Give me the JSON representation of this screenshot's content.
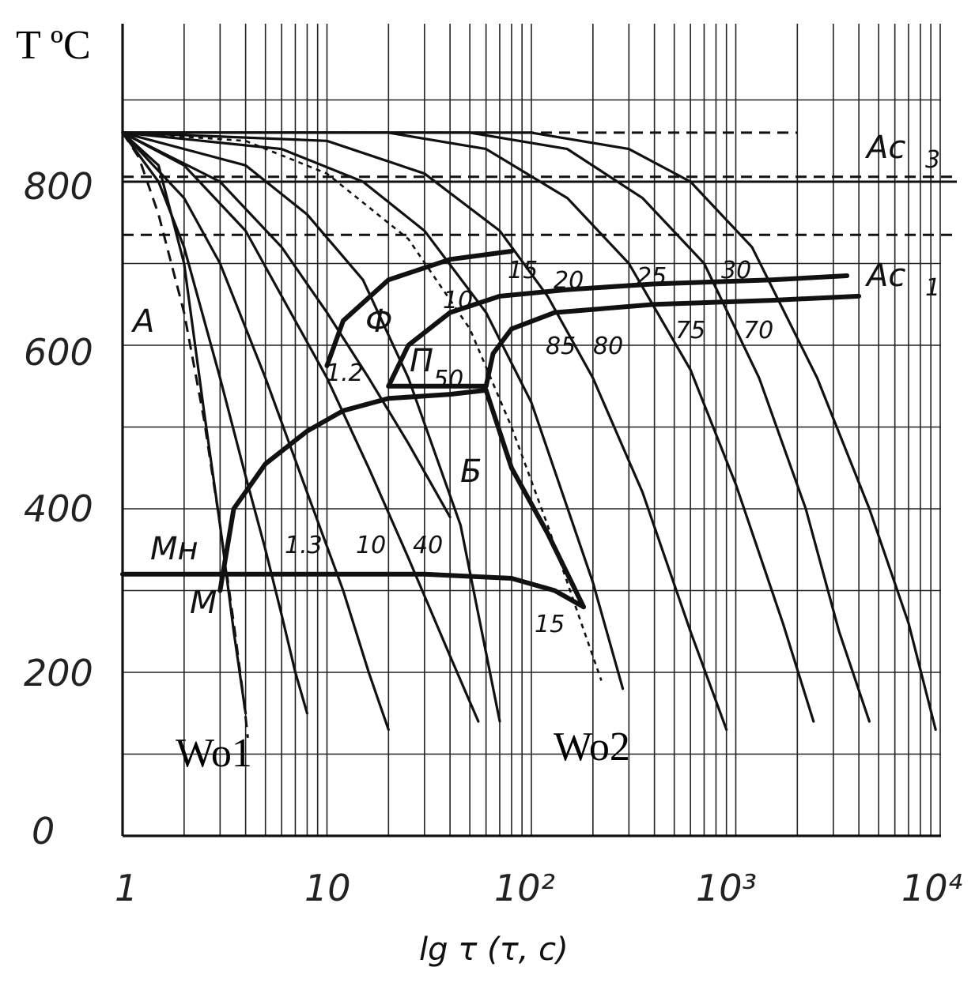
{
  "chart_data": {
    "type": "line",
    "title": "",
    "ylabel": "T ºC",
    "xlabel": "lg τ (τ, c)",
    "x_scale": "log",
    "xlim": [
      1,
      10000
    ],
    "ylim": [
      0,
      900
    ],
    "x_ticks": [
      "1",
      "10",
      "10²",
      "10³",
      "10⁴"
    ],
    "x_tick_values": [
      1,
      10,
      100,
      1000,
      10000
    ],
    "y_ticks": [
      "0",
      "200",
      "400",
      "600",
      "800"
    ],
    "y_tick_values": [
      0,
      200,
      400,
      600,
      800
    ],
    "grid": true,
    "reference_lines": [
      {
        "name": "Ac3",
        "label": "Ac",
        "sub": "3",
        "y": 800
      },
      {
        "name": "Ac1",
        "label": "Ac",
        "sub": "1",
        "y": 735
      }
    ],
    "region_labels": [
      "A",
      "Ф",
      "П",
      "Б",
      "M",
      "Mн"
    ],
    "cooling_curves": [
      {
        "x": [
          1,
          1.5,
          2,
          2.5,
          3,
          3.5,
          4
        ],
        "y": [
          860,
          820,
          700,
          520,
          380,
          250,
          150
        ]
      },
      {
        "x": [
          1,
          1.5,
          2,
          3,
          4,
          5,
          6,
          7,
          8
        ],
        "y": [
          860,
          800,
          720,
          560,
          440,
          350,
          270,
          200,
          150
        ]
      },
      {
        "x": [
          1,
          2,
          3,
          5,
          8,
          12,
          16,
          20
        ],
        "y": [
          860,
          780,
          700,
          560,
          420,
          300,
          200,
          130
        ]
      },
      {
        "x": [
          1,
          2,
          4,
          6,
          10,
          16,
          25,
          40,
          55
        ],
        "y": [
          860,
          820,
          740,
          660,
          560,
          450,
          340,
          220,
          140
        ]
      },
      {
        "x": [
          1,
          3,
          6,
          10,
          16,
          25,
          40
        ],
        "y": [
          860,
          800,
          720,
          640,
          560,
          480,
          390
        ]
      },
      {
        "x": [
          1,
          4,
          8,
          15,
          25,
          45,
          70
        ],
        "y": [
          860,
          820,
          760,
          680,
          560,
          380,
          140
        ]
      },
      {
        "x": [
          1,
          6,
          15,
          30,
          60,
          100,
          200,
          280
        ],
        "y": [
          860,
          840,
          800,
          740,
          640,
          530,
          310,
          180
        ]
      },
      {
        "x": [
          1,
          10,
          30,
          70,
          120,
          200,
          350,
          600,
          900
        ],
        "y": [
          860,
          850,
          810,
          740,
          660,
          560,
          420,
          250,
          130
        ]
      },
      {
        "x": [
          1,
          20,
          60,
          150,
          300,
          600,
          1000,
          1700,
          2400
        ],
        "y": [
          860,
          860,
          840,
          780,
          700,
          570,
          430,
          260,
          140
        ]
      },
      {
        "x": [
          1,
          50,
          150,
          350,
          700,
          1300,
          2200,
          3200,
          4500
        ],
        "y": [
          860,
          860,
          840,
          780,
          700,
          560,
          400,
          250,
          140
        ]
      },
      {
        "x": [
          1,
          100,
          300,
          600,
          1200,
          2500,
          4500,
          7000,
          9500
        ],
        "y": [
          860,
          860,
          840,
          800,
          720,
          560,
          400,
          260,
          130
        ]
      }
    ],
    "critical_cooling_curves": [
      {
        "name": "Wo1",
        "x": [
          1,
          1.2,
          1.5,
          2,
          2.5,
          3,
          3.5,
          3.9,
          4.1
        ],
        "y": [
          860,
          830,
          760,
          640,
          510,
          380,
          260,
          170,
          120
        ]
      },
      {
        "name": "Wo2",
        "x": [
          1,
          4,
          10,
          25,
          50,
          80,
          120,
          170,
          220
        ],
        "y": [
          860,
          850,
          810,
          730,
          620,
          500,
          380,
          270,
          190
        ]
      }
    ],
    "transformation_boundaries": {
      "ferrite_start": {
        "x": [
          10,
          12,
          20,
          40,
          80
        ],
        "y": [
          575,
          630,
          680,
          705,
          715
        ]
      },
      "pearlite_start": {
        "x": [
          20,
          25,
          40,
          70,
          150,
          400,
          1500,
          3500
        ],
        "y": [
          550,
          600,
          640,
          660,
          668,
          675,
          680,
          685
        ]
      },
      "pearlite_end": {
        "x": [
          60,
          65,
          80,
          130,
          400,
          1500,
          4000
        ],
        "y": [
          550,
          590,
          620,
          640,
          650,
          655,
          660
        ]
      },
      "bainite_start": {
        "x": [
          3,
          3.5,
          5,
          8,
          12,
          20,
          40,
          60
        ],
        "y": [
          300,
          400,
          455,
          495,
          520,
          535,
          540,
          545
        ]
      },
      "bainite_end": {
        "x": [
          60,
          80,
          120,
          180
        ],
        "y": [
          545,
          450,
          370,
          280
        ]
      },
      "martensite_start_Mn": {
        "x": [
          1,
          3,
          10,
          30,
          80,
          130,
          180
        ],
        "y": [
          320,
          320,
          320,
          320,
          315,
          300,
          280
        ]
      }
    },
    "annotations": [
      "15",
      "20",
      "25",
      "30",
      "10",
      "1.2",
      "50",
      "85",
      "80",
      "75",
      "70",
      "1.3",
      "10",
      "40",
      "15"
    ],
    "curve_labels": [
      "Wo1",
      "Wo2"
    ]
  }
}
